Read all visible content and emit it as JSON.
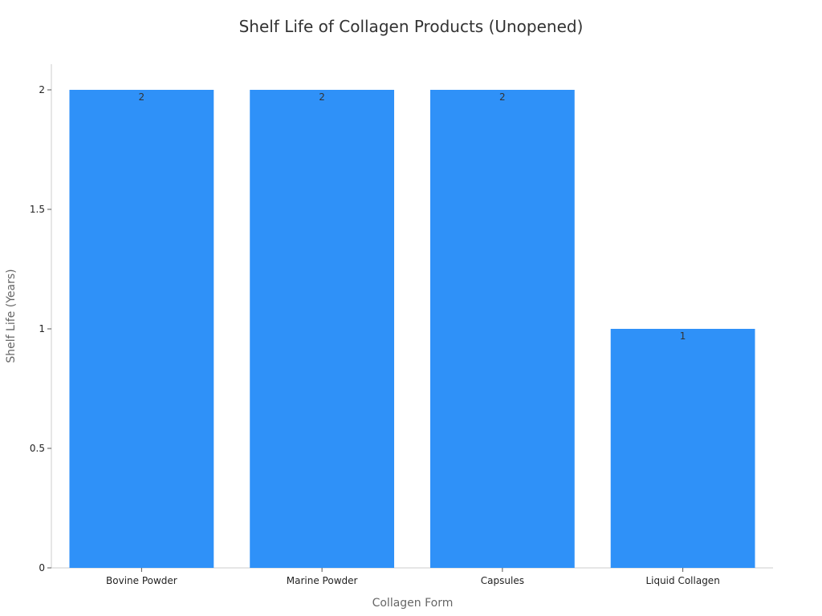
{
  "chart_data": {
    "type": "bar",
    "title": "Shelf Life of Collagen Products (Unopened)",
    "xlabel": "Collagen Form",
    "ylabel": "Shelf Life (Years)",
    "categories": [
      "Bovine Powder",
      "Marine Powder",
      "Capsules",
      "Liquid Collagen"
    ],
    "values": [
      2,
      2,
      2,
      1
    ],
    "data_labels": [
      "2",
      "2",
      "2",
      "1"
    ],
    "ylim": [
      0,
      2
    ],
    "yticks": [
      0,
      0.5,
      1,
      1.5,
      2
    ],
    "ytick_labels": [
      "0",
      "0.5",
      "1",
      "1.5",
      "2"
    ],
    "grid": false,
    "legend": "none",
    "bar_color": "#2f91f8"
  }
}
